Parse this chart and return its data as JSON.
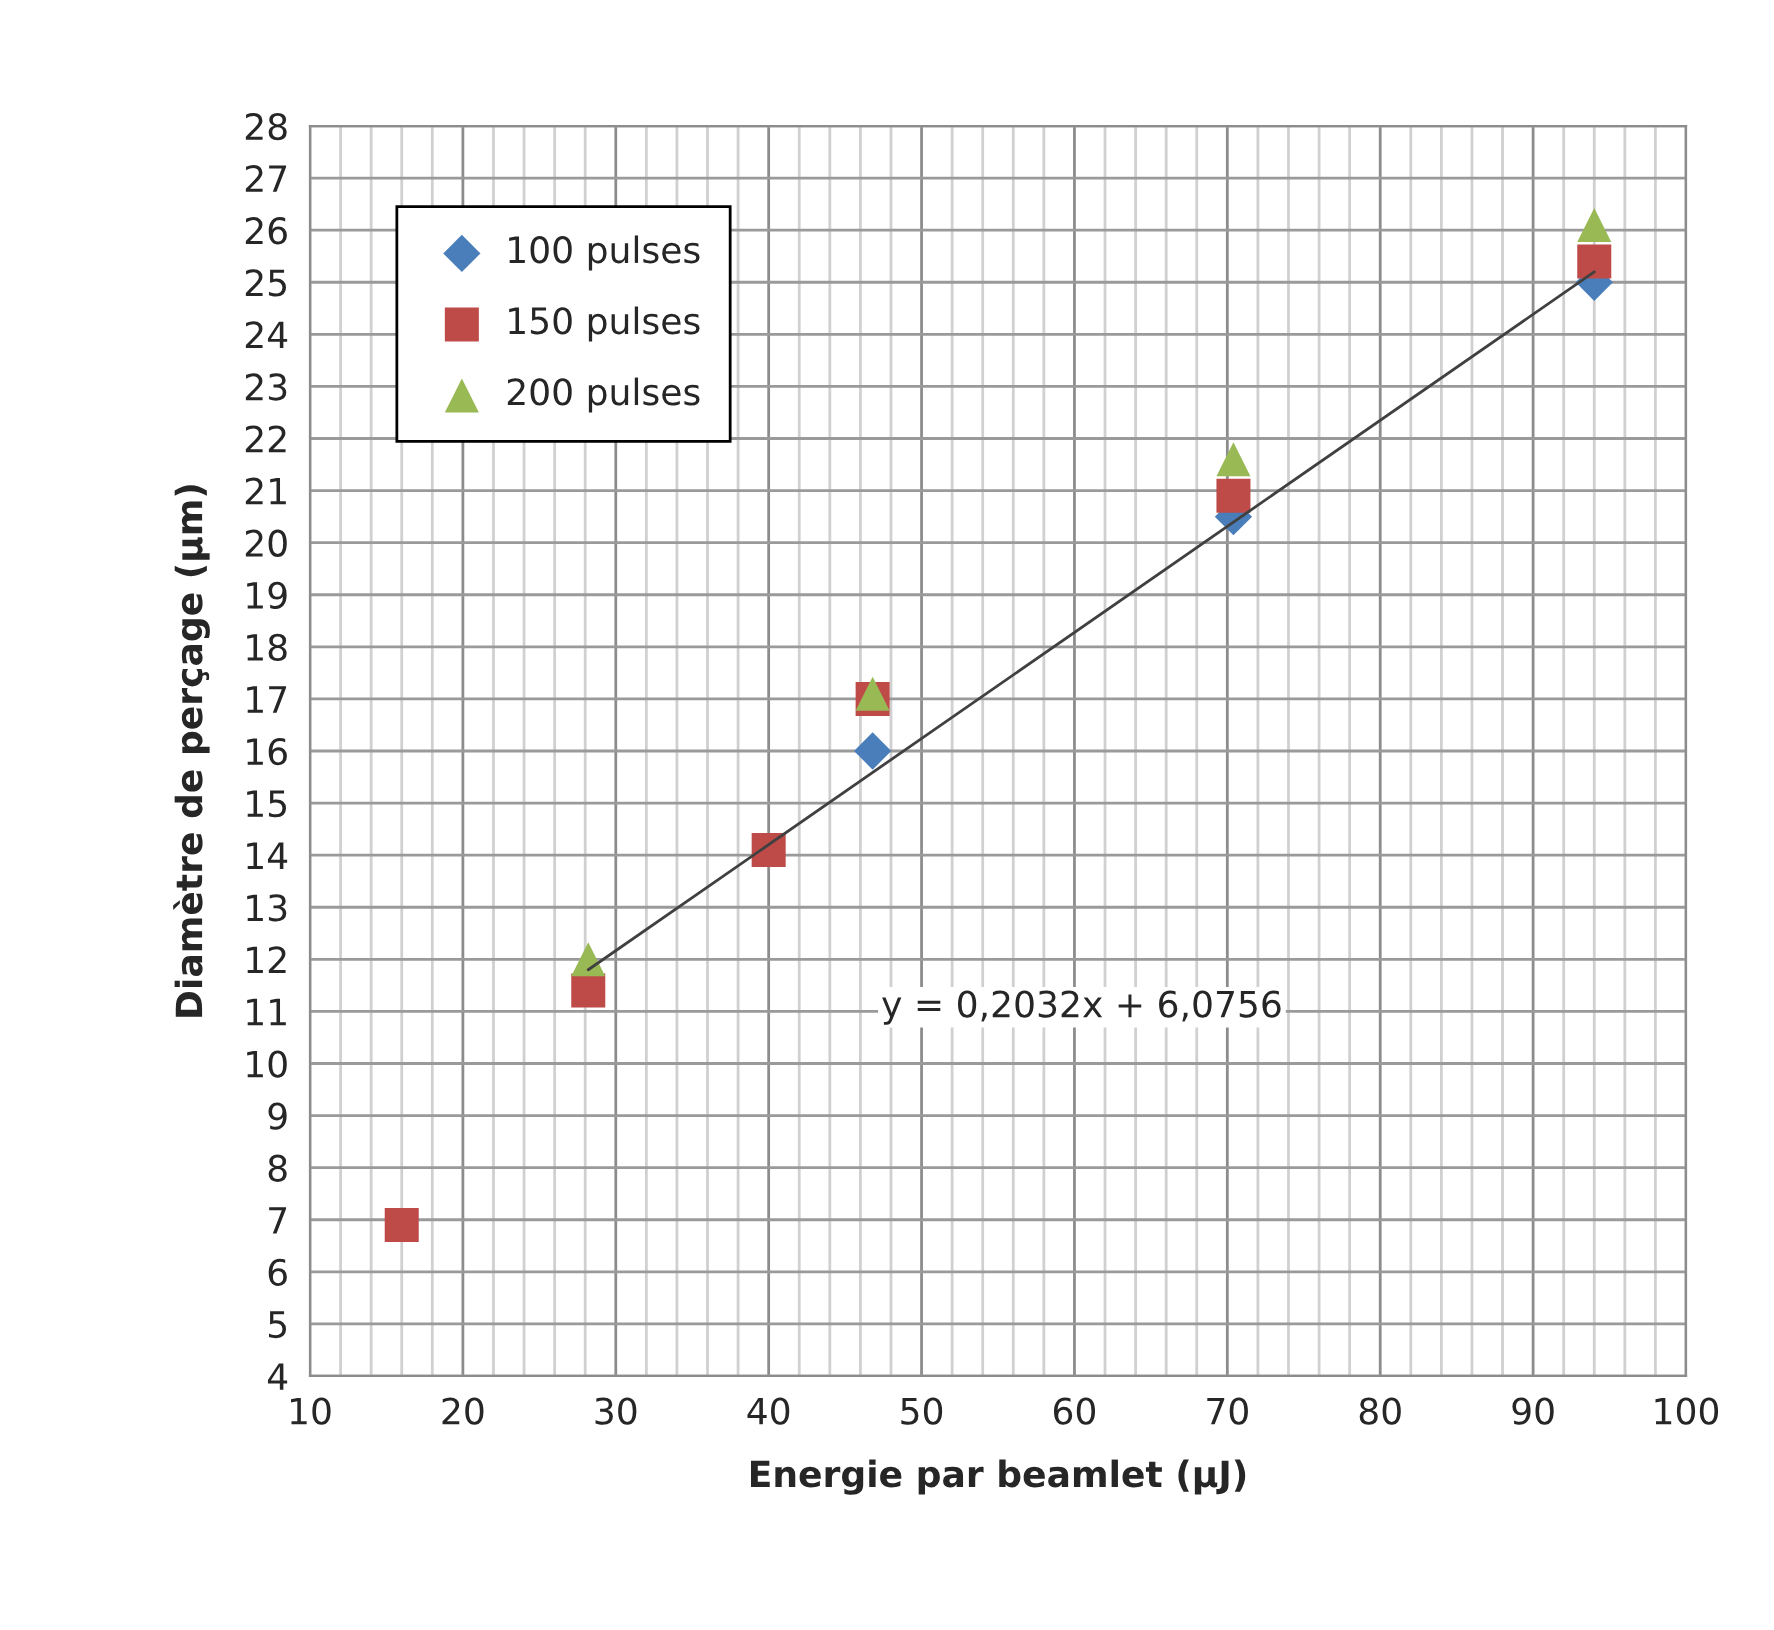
{
  "chart_data": {
    "type": "scatter",
    "xlabel": "Energie par beamlet (µJ)",
    "ylabel": "Diamètre de perçage (µm)",
    "xlim": [
      10,
      100
    ],
    "xticks": [
      10,
      20,
      30,
      40,
      50,
      60,
      70,
      80,
      90,
      100
    ],
    "ylim": [
      4,
      28
    ],
    "yticks": [
      4,
      5,
      6,
      7,
      8,
      9,
      10,
      11,
      12,
      13,
      14,
      15,
      16,
      17,
      18,
      19,
      20,
      21,
      22,
      23,
      24,
      25,
      26,
      27,
      28
    ],
    "grid": true,
    "legend": "top left",
    "series": [
      {
        "name": "100 pulses",
        "color": "#4a7ebb",
        "marker": "diamond",
        "x": [
          46.8,
          70.4,
          94
        ],
        "values": [
          16.0,
          20.5,
          25.0
        ]
      },
      {
        "name": "150 pulses",
        "color": "#be4b48",
        "marker": "square",
        "x": [
          16,
          28.2,
          40,
          46.8,
          70.4,
          94
        ],
        "values": [
          6.9,
          11.4,
          14.1,
          17.0,
          20.9,
          25.4
        ]
      },
      {
        "name": "200 pulses",
        "color": "#98b954",
        "marker": "triangle",
        "x": [
          28.2,
          46.8,
          70.4,
          94
        ],
        "values": [
          12.0,
          17.1,
          21.6,
          26.1
        ]
      },
      {
        "type": "line",
        "color": "#404040",
        "x": [
          28.2,
          94
        ],
        "values": [
          11.8,
          25.2
        ]
      }
    ],
    "annotations": [
      "y = 0,2032x + 6,0756"
    ]
  }
}
